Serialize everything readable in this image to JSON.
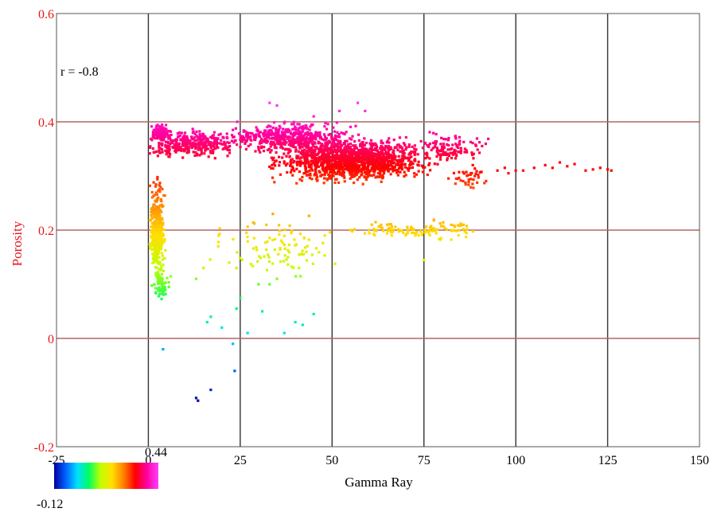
{
  "chart_data": {
    "type": "scatter",
    "title": "",
    "xlabel": "Gamma Ray",
    "ylabel": "Porosity",
    "xlim": [
      -25,
      150
    ],
    "ylim": [
      -0.2,
      0.6
    ],
    "x_ticks": [
      -25,
      0,
      25,
      50,
      75,
      100,
      125,
      150
    ],
    "x_tick_labels": [
      "-25",
      "0",
      "25",
      "50",
      "75",
      "100",
      "125",
      "150"
    ],
    "y_ticks": [
      -0.2,
      0,
      0.2,
      0.4,
      0.6
    ],
    "y_tick_labels": [
      "-0.2",
      "0",
      "0.2",
      "0.4",
      "0.6"
    ],
    "grid": true,
    "annotation": "r = -0.8",
    "colorbar": {
      "min_label": "-0.12",
      "max_label": "0.44",
      "min": -0.12,
      "max": 0.44,
      "colors": [
        "#0000a0",
        "#0060ff",
        "#00e0ff",
        "#00ff60",
        "#c0ff00",
        "#ffe000",
        "#ff8000",
        "#ff0000",
        "#ff00a0",
        "#ff40ff"
      ]
    },
    "series": [
      {
        "color_by": "y",
        "clusters": [
          {
            "x_center": 55,
            "y_center": 0.33,
            "x_spread": 15,
            "y_spread": 0.028,
            "count": 1400
          },
          {
            "x_center": 38,
            "y_center": 0.37,
            "x_spread": 13,
            "y_spread": 0.02,
            "count": 500
          },
          {
            "x_center": 12,
            "y_center": 0.36,
            "x_spread": 8,
            "y_spread": 0.018,
            "count": 350
          },
          {
            "x_center": 3,
            "y_center": 0.38,
            "x_spread": 2,
            "y_spread": 0.01,
            "count": 120
          },
          {
            "x_center": 2.5,
            "y_center": 0.2,
            "x_spread": 1.5,
            "y_spread": 0.06,
            "count": 400
          },
          {
            "x_center": 3.5,
            "y_center": 0.1,
            "x_spread": 1.8,
            "y_spread": 0.02,
            "count": 60
          },
          {
            "x_center": 82,
            "y_center": 0.35,
            "x_spread": 7,
            "y_spread": 0.02,
            "count": 120
          },
          {
            "x_center": 88,
            "y_center": 0.3,
            "x_spread": 4,
            "y_spread": 0.015,
            "count": 40
          },
          {
            "x_center": 68,
            "y_center": 0.2,
            "x_spread": 10,
            "y_spread": 0.01,
            "count": 70
          },
          {
            "x_center": 35,
            "y_center": 0.17,
            "x_spread": 12,
            "y_spread": 0.04,
            "count": 90
          },
          {
            "x_center": 82,
            "y_center": 0.2,
            "x_spread": 5,
            "y_spread": 0.015,
            "count": 40
          }
        ],
        "points": [
          [
            100,
            0.31
          ],
          [
            102,
            0.31
          ],
          [
            105,
            0.315
          ],
          [
            108,
            0.32
          ],
          [
            110,
            0.315
          ],
          [
            112,
            0.325
          ],
          [
            114,
            0.318
          ],
          [
            116,
            0.322
          ],
          [
            119,
            0.31
          ],
          [
            121,
            0.312
          ],
          [
            123,
            0.315
          ],
          [
            125,
            0.312
          ],
          [
            126,
            0.31
          ],
          [
            95,
            0.31
          ],
          [
            97,
            0.315
          ],
          [
            98,
            0.305
          ],
          [
            4,
            -0.02
          ],
          [
            13,
            -0.11
          ],
          [
            13.5,
            -0.115
          ],
          [
            17,
            -0.095
          ],
          [
            23.5,
            -0.06
          ],
          [
            23,
            -0.01
          ],
          [
            16,
            0.03
          ],
          [
            17,
            0.04
          ],
          [
            20,
            0.02
          ],
          [
            24,
            0.055
          ],
          [
            25,
            0.075
          ],
          [
            27,
            0.01
          ],
          [
            31,
            0.05
          ],
          [
            37,
            0.01
          ],
          [
            40,
            0.03
          ],
          [
            42,
            0.025
          ],
          [
            45,
            0.045
          ],
          [
            13,
            0.11
          ],
          [
            15,
            0.13
          ],
          [
            19,
            0.17
          ],
          [
            22,
            0.14
          ],
          [
            24,
            0.13
          ],
          [
            30,
            0.1
          ],
          [
            33,
            0.1
          ],
          [
            35,
            0.11
          ],
          [
            38,
            0.15
          ],
          [
            41,
            0.13
          ],
          [
            43,
            0.16
          ],
          [
            75,
            0.145
          ],
          [
            48,
            0.19
          ],
          [
            55,
            0.2
          ],
          [
            60,
            0.2
          ],
          [
            62,
            0.2
          ],
          [
            65,
            0.21
          ],
          [
            45,
            0.41
          ],
          [
            52,
            0.42
          ],
          [
            57,
            0.435
          ],
          [
            59,
            0.42
          ],
          [
            35,
            0.43
          ],
          [
            33,
            0.435
          ]
        ]
      }
    ]
  }
}
